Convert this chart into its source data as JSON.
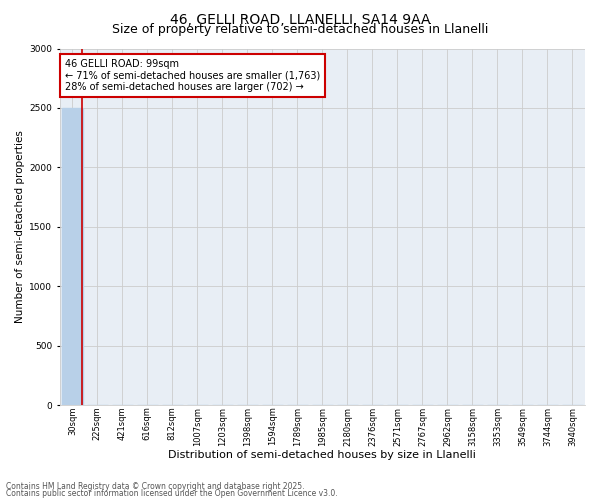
{
  "title": "46, GELLI ROAD, LLANELLI, SA14 9AA",
  "subtitle": "Size of property relative to semi-detached houses in Llanelli",
  "xlabel": "Distribution of semi-detached houses by size in Llanelli",
  "ylabel": "Number of semi-detached properties",
  "annotation_title": "46 GELLI ROAD: 99sqm",
  "annotation_line1": "← 71% of semi-detached houses are smaller (1,763)",
  "annotation_line2": "28% of semi-detached houses are larger (702) →",
  "footer_line1": "Contains HM Land Registry data © Crown copyright and database right 2025.",
  "footer_line2": "Contains public sector information licensed under the Open Government Licence v3.0.",
  "bar_labels": [
    "30sqm",
    "225sqm",
    "421sqm",
    "616sqm",
    "812sqm",
    "1007sqm",
    "1203sqm",
    "1398sqm",
    "1594sqm",
    "1789sqm",
    "1985sqm",
    "2180sqm",
    "2376sqm",
    "2571sqm",
    "2767sqm",
    "2962sqm",
    "3158sqm",
    "3353sqm",
    "3549sqm",
    "3744sqm",
    "3940sqm"
  ],
  "bar_values": [
    2500,
    5,
    3,
    2,
    2,
    1,
    1,
    1,
    0,
    0,
    0,
    0,
    0,
    0,
    0,
    0,
    0,
    0,
    0,
    0,
    0
  ],
  "bar_color": "#b8d0e8",
  "property_line_color": "#cc0000",
  "property_line_x": 0.4,
  "ylim": [
    0,
    3000
  ],
  "yticks": [
    0,
    500,
    1000,
    1500,
    2000,
    2500,
    3000
  ],
  "grid_color": "#cccccc",
  "annotation_box_edge_color": "#cc0000",
  "bg_color": "#e8eef5",
  "title_fontsize": 10,
  "subtitle_fontsize": 9,
  "ylabel_fontsize": 7.5,
  "xlabel_fontsize": 8,
  "tick_fontsize": 6,
  "annotation_fontsize": 7,
  "footer_fontsize": 5.5
}
